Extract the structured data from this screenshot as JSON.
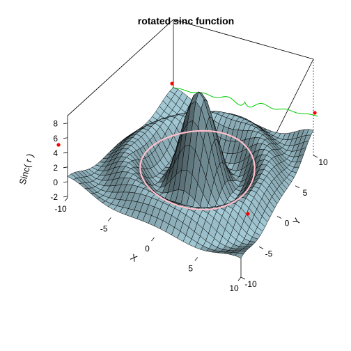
{
  "chart_data": {
    "type": "surface3d",
    "title": "rotated sinc function",
    "function": "sinc(r) = 10*sin(r)/r, r = sqrt(x^2 + y^2)",
    "xlabel": "X",
    "ylabel": "Y",
    "zlabel": "Sinc( r )",
    "xlim": [
      -10,
      10
    ],
    "ylim": [
      -10,
      10
    ],
    "zlim": [
      -2.2,
      9
    ],
    "x_ticks": [
      "-10",
      "-5",
      "0",
      "5",
      "10"
    ],
    "y_ticks": [
      "-10",
      "-5",
      "0",
      "5",
      "10"
    ],
    "z_ticks": [
      "-2",
      "0",
      "2",
      "4",
      "6",
      "8"
    ],
    "grid_n": 30,
    "colors": {
      "surface": "#a5ccd8",
      "mesh": "#000000",
      "circle": "#ffc0cb",
      "back_curve": "#00cc00",
      "points": "#ff0000"
    },
    "annotations": {
      "circle": "contour z=0 at r = pi",
      "back_curve": "sinc(y) on back wall x = -10",
      "points": [
        {
          "x": -10,
          "y": -10,
          "z": 6
        },
        {
          "x": -10,
          "y": 10,
          "z": 6
        },
        {
          "x": 8,
          "y": 0,
          "z": 6
        }
      ]
    }
  }
}
